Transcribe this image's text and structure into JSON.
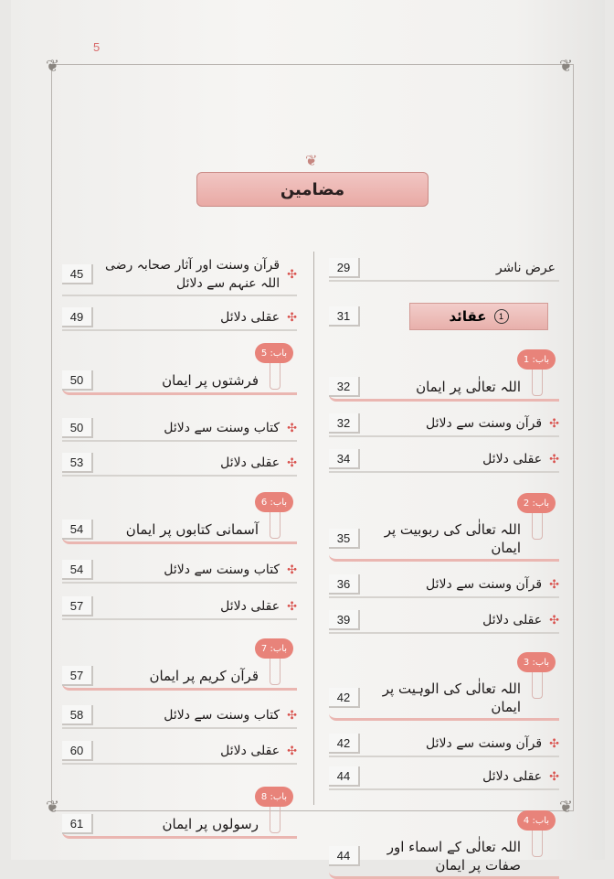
{
  "page_number": "5",
  "title": "مضامین",
  "right_column": [
    {
      "type": "plain",
      "text": "عرض ناشر",
      "page": "29"
    },
    {
      "type": "section",
      "num": "1",
      "text": "عقائد",
      "page": "31"
    },
    {
      "type": "chapter",
      "badge": "باب: 1",
      "text": "اللہ تعالٰی پر ایمان",
      "page": "32"
    },
    {
      "type": "item",
      "text": "قرآن وسنت سے دلائل",
      "page": "32"
    },
    {
      "type": "item",
      "text": "عقلی دلائل",
      "page": "34"
    },
    {
      "type": "chapter",
      "badge": "باب: 2",
      "text": "اللہ تعالٰی کی ربوبیت پر ایمان",
      "page": "35"
    },
    {
      "type": "item",
      "text": "قرآن وسنت سے دلائل",
      "page": "36"
    },
    {
      "type": "item",
      "text": "عقلی دلائل",
      "page": "39"
    },
    {
      "type": "chapter",
      "badge": "باب: 3",
      "text": "اللہ تعالٰی کی الوہیت پر ایمان",
      "page": "42"
    },
    {
      "type": "item",
      "text": "قرآن وسنت سے دلائل",
      "page": "42"
    },
    {
      "type": "item",
      "text": "عقلی دلائل",
      "page": "44"
    },
    {
      "type": "chapter",
      "badge": "باب: 4",
      "text": "اللہ تعالٰی کے اسماء اور صفات پر ایمان",
      "page": "44"
    }
  ],
  "left_column": [
    {
      "type": "item",
      "text": "قرآن وسنت اور آثار صحابہ رضی اللہ عنہم سے دلائل",
      "page": "45"
    },
    {
      "type": "item",
      "text": "عقلی دلائل",
      "page": "49"
    },
    {
      "type": "chapter",
      "badge": "باب: 5",
      "text": "فرشتوں پر ایمان",
      "page": "50"
    },
    {
      "type": "item",
      "text": "کتاب وسنت سے دلائل",
      "page": "50"
    },
    {
      "type": "item",
      "text": "عقلی دلائل",
      "page": "53"
    },
    {
      "type": "chapter",
      "badge": "باب: 6",
      "text": "آسمانی کتابوں پر ایمان",
      "page": "54"
    },
    {
      "type": "item",
      "text": "کتاب وسنت سے دلائل",
      "page": "54"
    },
    {
      "type": "item",
      "text": "عقلی دلائل",
      "page": "57"
    },
    {
      "type": "chapter",
      "badge": "باب: 7",
      "text": "قرآن کریم پر ایمان",
      "page": "57"
    },
    {
      "type": "item",
      "text": "کتاب وسنت سے دلائل",
      "page": "58"
    },
    {
      "type": "item",
      "text": "عقلی دلائل",
      "page": "60"
    },
    {
      "type": "chapter",
      "badge": "باب: 8",
      "text": "رسولوں پر ایمان",
      "page": "61"
    }
  ],
  "icons": {
    "bullet": "flower-bullet-icon"
  },
  "colors": {
    "accent": "#e8837a",
    "banner": "#eab6b1",
    "page_number": "#d86a6a"
  }
}
